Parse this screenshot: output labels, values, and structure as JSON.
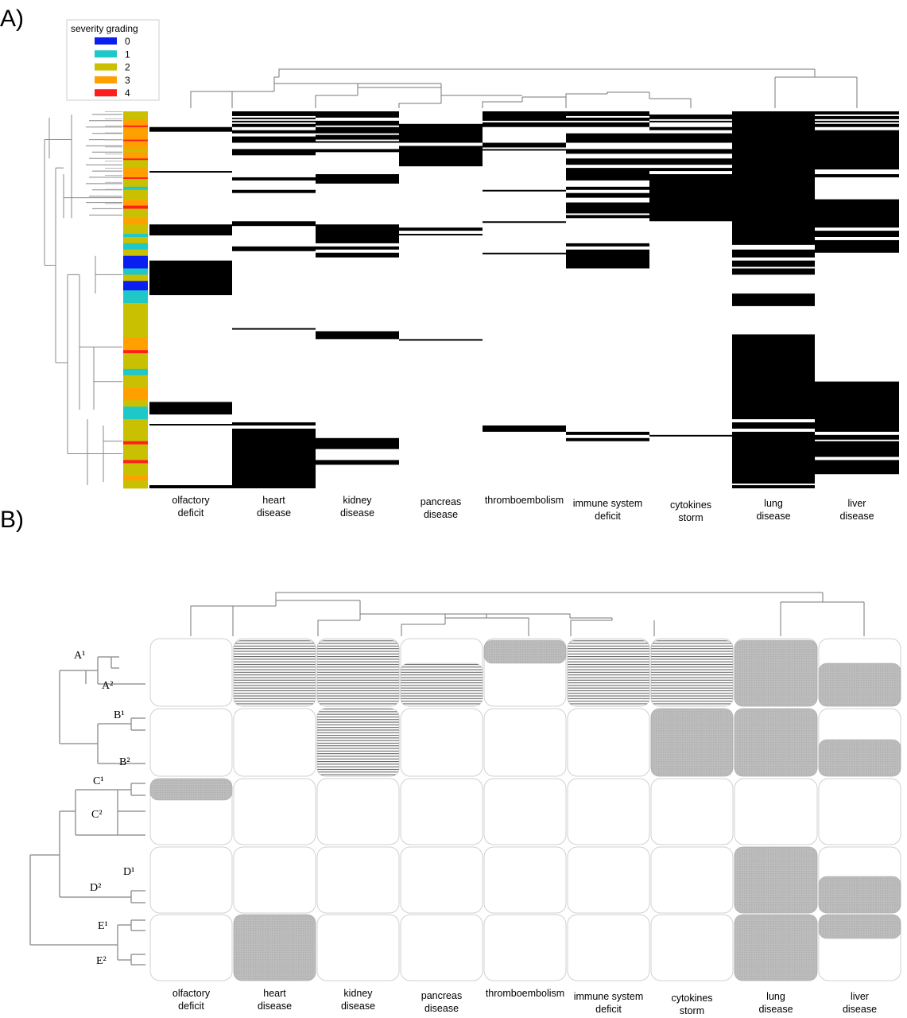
{
  "panel_a_label": "A)",
  "panel_b_label": "B)",
  "legend": {
    "title": "severity grading",
    "entries": [
      {
        "label": "0",
        "color": "#0a1ef0"
      },
      {
        "label": "1",
        "color": "#1ec8c8"
      },
      {
        "label": "2",
        "color": "#c8c000"
      },
      {
        "label": "3",
        "color": "#ffa000"
      },
      {
        "label": "4",
        "color": "#ff1e1e"
      }
    ]
  },
  "columns_a": [
    [
      "olfactory",
      "deficit"
    ],
    [
      "heart",
      "disease"
    ],
    [
      "kidney",
      "disease"
    ],
    [
      "pancreas",
      "disease"
    ],
    [
      "thromboembolism"
    ],
    [
      "immune system",
      "deficit"
    ],
    [
      "cytokines",
      "storm"
    ],
    [
      "lung",
      "disease"
    ],
    [
      "liver",
      "disease"
    ]
  ],
  "columns_b": [
    [
      "olfactory",
      "deficit"
    ],
    [
      "heart",
      "disease"
    ],
    [
      "kidney",
      "disease"
    ],
    [
      "pancreas",
      "disease"
    ],
    [
      "thromboembolism"
    ],
    [
      "immune system",
      "deficit"
    ],
    [
      "cytokines",
      "storm"
    ],
    [
      "lung",
      "disease"
    ],
    [
      "liver",
      "disease"
    ]
  ],
  "cluster_labels": [
    "A¹",
    "A²",
    "B¹",
    "B²",
    "C¹",
    "C²",
    "D¹",
    "D²",
    "E¹",
    "E²"
  ],
  "chart_data": [
    {
      "type": "heatmap",
      "panel": "A",
      "description_source": "binary presence matrix (black = present), patients in rows, comorbidities in columns",
      "columns": [
        "olfactory deficit",
        "heart disease",
        "kidney disease",
        "pancreas disease",
        "thromboembolism",
        "immune system deficit",
        "cytokines storm",
        "lung disease",
        "liver disease"
      ],
      "n_rows": 240,
      "row_severity_runs": [
        [
          0,
          2
        ],
        [
          5,
          3
        ],
        [
          9,
          4
        ],
        [
          10,
          3
        ],
        [
          18,
          4
        ],
        [
          19,
          3
        ],
        [
          24,
          2
        ],
        [
          26,
          3
        ],
        [
          30,
          4
        ],
        [
          31,
          2
        ],
        [
          36,
          3
        ],
        [
          42,
          4
        ],
        [
          43,
          2
        ],
        [
          48,
          1
        ],
        [
          50,
          2
        ],
        [
          56,
          3
        ],
        [
          60,
          4
        ],
        [
          62,
          2
        ],
        [
          68,
          3
        ],
        [
          72,
          2
        ],
        [
          78,
          1
        ],
        [
          80,
          2
        ],
        [
          84,
          1
        ],
        [
          88,
          2
        ],
        [
          92,
          0
        ],
        [
          100,
          1
        ],
        [
          104,
          2
        ],
        [
          108,
          0
        ],
        [
          114,
          1
        ],
        [
          122,
          2
        ],
        [
          144,
          3
        ],
        [
          152,
          4
        ],
        [
          154,
          2
        ],
        [
          164,
          1
        ],
        [
          168,
          2
        ],
        [
          176,
          3
        ],
        [
          184,
          2
        ],
        [
          188,
          1
        ],
        [
          196,
          2
        ],
        [
          210,
          4
        ],
        [
          212,
          2
        ],
        [
          222,
          4
        ],
        [
          224,
          2
        ],
        [
          232,
          3
        ],
        [
          235,
          2
        ]
      ],
      "present_runs": {
        "olfactory deficit": [
          [
            10,
            13
          ],
          [
            38,
            39
          ],
          [
            72,
            79
          ],
          [
            95,
            117
          ],
          [
            185,
            193
          ],
          [
            199,
            200
          ],
          [
            238,
            240
          ]
        ],
        "heart disease": [
          [
            0,
            3
          ],
          [
            4,
            5
          ],
          [
            6,
            7
          ],
          [
            8,
            10
          ],
          [
            12,
            14
          ],
          [
            16,
            20
          ],
          [
            24,
            28
          ],
          [
            42,
            44
          ],
          [
            50,
            52
          ],
          [
            70,
            73
          ],
          [
            86,
            89
          ],
          [
            138,
            139
          ],
          [
            198,
            200
          ],
          [
            202,
            240
          ]
        ],
        "kidney disease": [
          [
            0,
            4
          ],
          [
            6,
            9
          ],
          [
            10,
            14
          ],
          [
            15,
            18
          ],
          [
            19,
            20
          ],
          [
            24,
            26
          ],
          [
            40,
            46
          ],
          [
            72,
            84
          ],
          [
            86,
            88
          ],
          [
            90,
            93
          ],
          [
            140,
            145
          ],
          [
            208,
            215
          ],
          [
            222,
            225
          ]
        ],
        "pancreas disease": [
          [
            8,
            20
          ],
          [
            22,
            35
          ],
          [
            74,
            76
          ],
          [
            78,
            79
          ],
          [
            145,
            146
          ]
        ],
        "thromboembolism": [
          [
            0,
            6
          ],
          [
            7,
            10
          ],
          [
            20,
            23
          ],
          [
            24,
            25
          ],
          [
            50,
            51
          ],
          [
            70,
            71
          ],
          [
            90,
            91
          ],
          [
            200,
            204
          ]
        ],
        "immune system deficit": [
          [
            0,
            3
          ],
          [
            4,
            6
          ],
          [
            7,
            10
          ],
          [
            14,
            20
          ],
          [
            24,
            27
          ],
          [
            30,
            34
          ],
          [
            36,
            44
          ],
          [
            48,
            50
          ],
          [
            52,
            55
          ],
          [
            58,
            65
          ],
          [
            66,
            68
          ],
          [
            84,
            86
          ],
          [
            88,
            100
          ],
          [
            204,
            206
          ],
          [
            208,
            210
          ]
        ],
        "cytokines storm": [
          [
            2,
            5
          ],
          [
            6,
            7
          ],
          [
            10,
            12
          ],
          [
            14,
            20
          ],
          [
            24,
            27
          ],
          [
            30,
            34
          ],
          [
            36,
            38
          ],
          [
            40,
            70
          ],
          [
            206,
            207
          ]
        ],
        "lung disease": [
          [
            0,
            85
          ],
          [
            88,
            93
          ],
          [
            95,
            99
          ],
          [
            100,
            104
          ],
          [
            116,
            124
          ],
          [
            142,
            196
          ],
          [
            198,
            202
          ],
          [
            204,
            237
          ],
          [
            238,
            240
          ]
        ],
        "liver disease": [
          [
            0,
            2
          ],
          [
            3,
            5
          ],
          [
            6,
            7
          ],
          [
            8,
            10
          ],
          [
            12,
            37
          ],
          [
            40,
            42
          ],
          [
            56,
            74
          ],
          [
            76,
            80
          ],
          [
            82,
            90
          ],
          [
            172,
            204
          ],
          [
            206,
            209
          ],
          [
            210,
            220
          ],
          [
            222,
            231
          ]
        ]
      },
      "col_dendrogram_order": [
        "olfactory deficit",
        "heart disease",
        "kidney disease",
        "pancreas disease",
        "thromboembolism",
        "immune system deficit",
        "cytokines storm",
        "lung disease",
        "liver disease"
      ]
    },
    {
      "type": "heatmap",
      "panel": "B",
      "description_source": "cluster-level summary; grey = frequent, hatched = intermediate, white = absent",
      "columns": [
        "olfactory deficit",
        "heart disease",
        "kidney disease",
        "pancreas disease",
        "thromboembolism",
        "immune system deficit",
        "cytokines storm",
        "lung disease",
        "liver disease"
      ],
      "rows": [
        "A¹",
        "A²",
        "B¹",
        "B²",
        "C¹",
        "C²",
        "D¹",
        "D²",
        "E¹",
        "E²"
      ],
      "cells": [
        [
          "none",
          "hatched",
          "hatched",
          "none",
          "grey",
          "hatched",
          "hatched",
          "grey",
          "none"
        ],
        [
          "none",
          "hatched",
          "hatched",
          "hatched",
          "none",
          "hatched",
          "hatched",
          "grey",
          "grey"
        ],
        [
          "none",
          "none",
          "hatched",
          "none",
          "none",
          "none",
          "grey",
          "grey",
          "none"
        ],
        [
          "none",
          "none",
          "hatched",
          "none",
          "none",
          "none",
          "grey",
          "grey",
          "grey"
        ],
        [
          "grey",
          "none",
          "none",
          "none",
          "none",
          "none",
          "none",
          "none",
          "none"
        ],
        [
          "none",
          "none",
          "none",
          "none",
          "none",
          "none",
          "none",
          "none",
          "none"
        ],
        [
          "none",
          "none",
          "none",
          "none",
          "none",
          "none",
          "none",
          "grey",
          "none"
        ],
        [
          "none",
          "none",
          "none",
          "none",
          "none",
          "none",
          "none",
          "grey",
          "grey"
        ],
        [
          "none",
          "grey",
          "none",
          "none",
          "none",
          "none",
          "none",
          "grey",
          "grey"
        ],
        [
          "none",
          "grey",
          "none",
          "none",
          "none",
          "none",
          "none",
          "grey",
          "none"
        ]
      ]
    }
  ]
}
